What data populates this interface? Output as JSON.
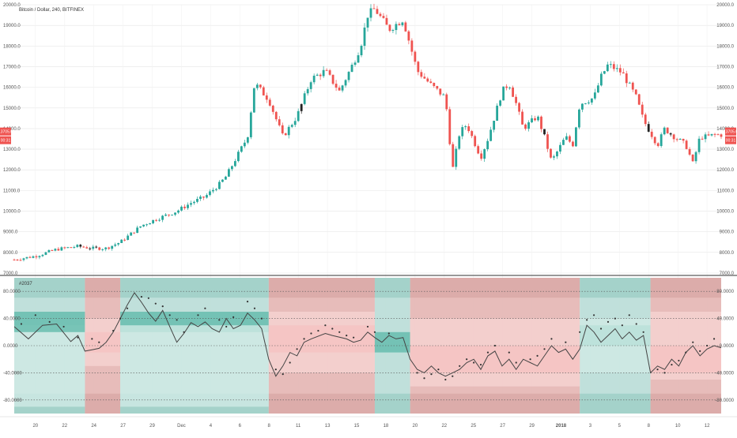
{
  "window": {
    "title": "Bitcoin / Dollar, 240, BITFINEX"
  },
  "colors": {
    "up": "#26a69a",
    "down": "#ef5350",
    "neutral": "#222222",
    "teal_zone": "#8fd0c4",
    "red_zone": "#e8a3a1",
    "grid": "#e6e6e6",
    "axis_text": "#555555"
  },
  "chart_data": [
    {
      "type": "candlestick",
      "title": "Bitcoin / Dollar, 240, BITFINEX",
      "ylim": [
        7000,
        20000
      ],
      "yticks": [
        "20000.0",
        "19000.0",
        "18000.0",
        "17000.0",
        "16000.0",
        "15000.0",
        "14000.0",
        "13000.0",
        "12000.0",
        "11000.0",
        "10000.0",
        "9000.0",
        "8000.0",
        "7000.0"
      ],
      "ytick_values": [
        20000,
        19000,
        18000,
        17000,
        16000,
        15000,
        14000,
        13000,
        12000,
        11000,
        10000,
        9000,
        8000,
        7000
      ],
      "xticks": [
        "20",
        "22",
        "24",
        "27",
        "29",
        "Dec",
        "4",
        "6",
        "8",
        "11",
        "13",
        "15",
        "18",
        "20",
        "22",
        "25",
        "27",
        "29",
        "2018",
        "3",
        "5",
        "8",
        "10",
        "12"
      ],
      "last_price": "13705.0",
      "countdown": "00:31",
      "close_path": [
        [
          0,
          7650
        ],
        [
          3,
          7820
        ],
        [
          6,
          8150
        ],
        [
          9,
          8300
        ],
        [
          11,
          8200
        ],
        [
          13,
          8200
        ],
        [
          15,
          8500
        ],
        [
          18,
          9300
        ],
        [
          20,
          9600
        ],
        [
          23,
          10000
        ],
        [
          25,
          10400
        ],
        [
          27,
          10700
        ],
        [
          29,
          11300
        ],
        [
          30,
          11700
        ],
        [
          33,
          13600
        ],
        [
          34,
          16200
        ],
        [
          36,
          15400
        ],
        [
          38,
          13600
        ],
        [
          40,
          14600
        ],
        [
          42,
          16400
        ],
        [
          44,
          16800
        ],
        [
          46,
          15800
        ],
        [
          48,
          17200
        ],
        [
          49,
          18000
        ],
        [
          50,
          19500
        ],
        [
          51,
          19800
        ],
        [
          53,
          18800
        ],
        [
          55,
          19300
        ],
        [
          57,
          16800
        ],
        [
          59,
          16100
        ],
        [
          61,
          15500
        ],
        [
          62,
          12000
        ],
        [
          63,
          13800
        ],
        [
          64,
          14200
        ],
        [
          66,
          12600
        ],
        [
          67,
          13500
        ],
        [
          69,
          15800
        ],
        [
          70,
          16200
        ],
        [
          71,
          15200
        ],
        [
          72,
          14000
        ],
        [
          74,
          14600
        ],
        [
          75,
          13600
        ],
        [
          76,
          12400
        ],
        [
          78,
          13600
        ],
        [
          79,
          13200
        ],
        [
          80,
          15200
        ],
        [
          82,
          15500
        ],
        [
          83,
          16500
        ],
        [
          84,
          17100
        ],
        [
          86,
          16700
        ],
        [
          88,
          15500
        ],
        [
          89,
          14400
        ],
        [
          90,
          13800
        ],
        [
          91,
          13200
        ],
        [
          92,
          14000
        ],
        [
          93,
          13700
        ],
        [
          95,
          13200
        ],
        [
          96,
          12300
        ],
        [
          97,
          13600
        ],
        [
          98,
          13600
        ],
        [
          99,
          13700
        ]
      ],
      "neutral_x": [
        2.5,
        9,
        11,
        32,
        41,
        75,
        90
      ],
      "neutral_x_fixed": [
        9.5,
        10.5,
        11.5,
        40.5,
        74.5,
        89.5,
        92.5
      ]
    },
    {
      "type": "line",
      "title": "#2037",
      "ylim": [
        -100000,
        100000
      ],
      "yticks": [
        "80.0000",
        "40.0000",
        "0.0000",
        "-40.0000",
        "-80.0000"
      ],
      "ytick_values": [
        80000,
        40000,
        0,
        -40000,
        -80000
      ],
      "zones": [
        {
          "from": 0,
          "to": 10,
          "color": "teal"
        },
        {
          "from": 10,
          "to": 15,
          "color": "red"
        },
        {
          "from": 15,
          "to": 36,
          "color": "teal"
        },
        {
          "from": 36,
          "to": 51,
          "color": "red"
        },
        {
          "from": 51,
          "to": 56,
          "color": "teal"
        },
        {
          "from": 56,
          "to": 80,
          "color": "red"
        },
        {
          "from": 80,
          "to": 90,
          "color": "teal"
        },
        {
          "from": 90,
          "to": 100,
          "color": "red"
        }
      ],
      "dotted_lines": [
        {
          "from": 0,
          "to": 100,
          "value": 80000
        },
        {
          "from": 0,
          "to": 100,
          "value": 40000
        },
        {
          "from": 0,
          "to": 100,
          "value": 0
        },
        {
          "from": 0,
          "to": 100,
          "value": -40000
        },
        {
          "from": 0,
          "to": 100,
          "value": -80000
        }
      ],
      "bands": [
        {
          "from": 0,
          "to": 10,
          "band": "light",
          "color": "teal",
          "low": -90000,
          "high": 30000
        },
        {
          "from": 0,
          "to": 10,
          "band": "mid",
          "color": "teal",
          "low": 20000,
          "high": 50000
        },
        {
          "from": 10,
          "to": 15,
          "band": "mid",
          "color": "red",
          "low": -10000,
          "high": 20000
        },
        {
          "from": 10,
          "to": 15,
          "band": "light",
          "color": "red",
          "low": -30000,
          "high": 40000
        },
        {
          "from": 15,
          "to": 36,
          "band": "mid",
          "color": "teal",
          "low": 20000,
          "high": 50000
        },
        {
          "from": 15,
          "to": 36,
          "band": "light",
          "color": "teal",
          "low": -90000,
          "high": 30000
        },
        {
          "from": 36,
          "to": 51,
          "band": "mid",
          "color": "red",
          "low": -10000,
          "high": 30000
        },
        {
          "from": 36,
          "to": 51,
          "band": "light",
          "color": "red",
          "low": -40000,
          "high": 50000
        },
        {
          "from": 51,
          "to": 56,
          "band": "mid",
          "color": "teal",
          "low": -10000,
          "high": 20000
        },
        {
          "from": 56,
          "to": 80,
          "band": "mid",
          "color": "red",
          "low": -40000,
          "high": 0
        },
        {
          "from": 56,
          "to": 80,
          "band": "light",
          "color": "red",
          "low": -60000,
          "high": 40000
        },
        {
          "from": 80,
          "to": 90,
          "band": "mid",
          "color": "teal",
          "low": 0,
          "high": 30000
        },
        {
          "from": 80,
          "to": 90,
          "band": "light",
          "color": "teal",
          "low": -40000,
          "high": 40000
        },
        {
          "from": 90,
          "to": 100,
          "band": "mid",
          "color": "red",
          "low": -40000,
          "high": 0
        },
        {
          "from": 90,
          "to": 100,
          "band": "light",
          "color": "red",
          "low": -50000,
          "high": 50000
        }
      ],
      "line": [
        [
          0,
          28000
        ],
        [
          2,
          10000
        ],
        [
          4,
          30000
        ],
        [
          6,
          32000
        ],
        [
          8,
          6000
        ],
        [
          9,
          15000
        ],
        [
          10,
          -8000
        ],
        [
          11,
          -6000
        ],
        [
          12,
          -4000
        ],
        [
          13,
          5000
        ],
        [
          14,
          20000
        ],
        [
          15,
          40000
        ],
        [
          16,
          60000
        ],
        [
          17,
          78000
        ],
        [
          18,
          64000
        ],
        [
          19,
          48000
        ],
        [
          20,
          36000
        ],
        [
          21,
          52000
        ],
        [
          22,
          28000
        ],
        [
          23,
          5000
        ],
        [
          24,
          18000
        ],
        [
          25,
          34000
        ],
        [
          26,
          28000
        ],
        [
          27,
          35000
        ],
        [
          28,
          25000
        ],
        [
          29,
          20000
        ],
        [
          30,
          40000
        ],
        [
          31,
          25000
        ],
        [
          32,
          30000
        ],
        [
          33,
          48000
        ],
        [
          34,
          38000
        ],
        [
          35,
          25000
        ],
        [
          36,
          -20000
        ],
        [
          37,
          -45000
        ],
        [
          38,
          -30000
        ],
        [
          39,
          -10000
        ],
        [
          40,
          -15000
        ],
        [
          41,
          5000
        ],
        [
          42,
          10000
        ],
        [
          44,
          18000
        ],
        [
          45,
          15000
        ],
        [
          47,
          10000
        ],
        [
          48,
          5000
        ],
        [
          49,
          8000
        ],
        [
          50,
          20000
        ],
        [
          51,
          12000
        ],
        [
          52,
          5000
        ],
        [
          53,
          15000
        ],
        [
          54,
          10000
        ],
        [
          55,
          12000
        ],
        [
          56,
          -20000
        ],
        [
          57,
          -35000
        ],
        [
          58,
          -40000
        ],
        [
          59,
          -30000
        ],
        [
          60,
          -40000
        ],
        [
          61,
          -45000
        ],
        [
          62,
          -40000
        ],
        [
          63,
          -35000
        ],
        [
          64,
          -25000
        ],
        [
          65,
          -20000
        ],
        [
          66,
          -35000
        ],
        [
          67,
          -15000
        ],
        [
          68,
          -8000
        ],
        [
          69,
          -30000
        ],
        [
          70,
          -20000
        ],
        [
          71,
          -35000
        ],
        [
          72,
          -20000
        ],
        [
          73,
          -25000
        ],
        [
          74,
          -30000
        ],
        [
          75,
          -15000
        ],
        [
          76,
          0
        ],
        [
          77,
          -10000
        ],
        [
          78,
          -5000
        ],
        [
          79,
          -20000
        ],
        [
          80,
          -5000
        ],
        [
          81,
          30000
        ],
        [
          82,
          20000
        ],
        [
          83,
          5000
        ],
        [
          84,
          15000
        ],
        [
          85,
          25000
        ],
        [
          86,
          10000
        ],
        [
          87,
          20000
        ],
        [
          88,
          8000
        ],
        [
          89,
          15000
        ],
        [
          90,
          -40000
        ],
        [
          91,
          -30000
        ],
        [
          92,
          -35000
        ],
        [
          93,
          -20000
        ],
        [
          94,
          -30000
        ],
        [
          95,
          -10000
        ],
        [
          96,
          0
        ],
        [
          97,
          -15000
        ],
        [
          98,
          -5000
        ],
        [
          99,
          0
        ],
        [
          100,
          -3000
        ]
      ],
      "dots": [
        [
          1,
          32000
        ],
        [
          3,
          45000
        ],
        [
          5,
          35000
        ],
        [
          7,
          28000
        ],
        [
          9,
          12000
        ],
        [
          11,
          10000
        ],
        [
          12,
          5000
        ],
        [
          14,
          22000
        ],
        [
          15,
          40000
        ],
        [
          16,
          55000
        ],
        [
          18,
          72000
        ],
        [
          19,
          70000
        ],
        [
          20,
          62000
        ],
        [
          21,
          58000
        ],
        [
          22,
          45000
        ],
        [
          23,
          38000
        ],
        [
          24,
          20000
        ],
        [
          26,
          45000
        ],
        [
          27,
          55000
        ],
        [
          29,
          38000
        ],
        [
          30,
          28000
        ],
        [
          31,
          42000
        ],
        [
          33,
          65000
        ],
        [
          34,
          55000
        ],
        [
          35,
          40000
        ],
        [
          37,
          -35000
        ],
        [
          38,
          -42000
        ],
        [
          39,
          -25000
        ],
        [
          40,
          -5000
        ],
        [
          41,
          10000
        ],
        [
          42,
          18000
        ],
        [
          43,
          22000
        ],
        [
          44,
          30000
        ],
        [
          45,
          25000
        ],
        [
          46,
          20000
        ],
        [
          47,
          15000
        ],
        [
          48,
          12000
        ],
        [
          50,
          28000
        ],
        [
          51,
          20000
        ],
        [
          53,
          18000
        ],
        [
          57,
          -40000
        ],
        [
          58,
          -48000
        ],
        [
          59,
          -42000
        ],
        [
          60,
          -35000
        ],
        [
          61,
          -50000
        ],
        [
          62,
          -45000
        ],
        [
          63,
          -30000
        ],
        [
          64,
          -20000
        ],
        [
          65,
          -25000
        ],
        [
          66,
          -28000
        ],
        [
          67,
          -10000
        ],
        [
          68,
          0
        ],
        [
          70,
          -10000
        ],
        [
          71,
          -25000
        ],
        [
          73,
          -20000
        ],
        [
          74,
          -15000
        ],
        [
          75,
          -5000
        ],
        [
          76,
          10000
        ],
        [
          78,
          5000
        ],
        [
          80,
          20000
        ],
        [
          81,
          38000
        ],
        [
          82,
          45000
        ],
        [
          83,
          25000
        ],
        [
          84,
          35000
        ],
        [
          85,
          40000
        ],
        [
          86,
          30000
        ],
        [
          87,
          45000
        ],
        [
          88,
          32000
        ],
        [
          89,
          20000
        ],
        [
          91,
          -35000
        ],
        [
          92,
          -40000
        ],
        [
          93,
          -28000
        ],
        [
          94,
          -22000
        ],
        [
          95,
          -10000
        ],
        [
          96,
          5000
        ],
        [
          97,
          -8000
        ],
        [
          98,
          0
        ],
        [
          99,
          10000
        ]
      ]
    }
  ]
}
